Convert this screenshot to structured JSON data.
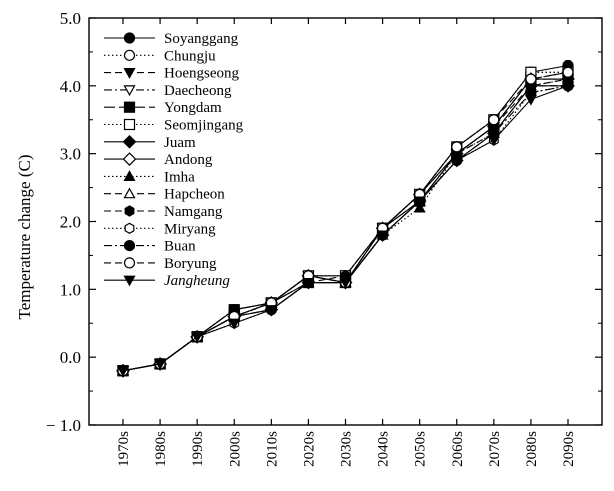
{
  "chart_data": {
    "type": "line",
    "title": "",
    "xlabel": "",
    "ylabel": "Temperature change (C)",
    "ylim": [
      -1.0,
      5.0
    ],
    "yticks": [
      "5.0",
      "4.0",
      "3.0",
      "2.0",
      "1.0",
      "0.0",
      "− 1.0"
    ],
    "ytick_values": [
      5,
      4,
      3,
      2,
      1,
      0,
      -1
    ],
    "categories": [
      "1970s",
      "1980s",
      "1990s",
      "2000s",
      "2010s",
      "2020s",
      "2030s",
      "2040s",
      "2050s",
      "2060s",
      "2070s",
      "2080s",
      "2090s"
    ],
    "grid": false,
    "legend_position": "top-left",
    "series": [
      {
        "name": "Soyanggang",
        "marker": "circle-filled",
        "dash": "solid",
        "values": [
          -0.2,
          -0.1,
          0.3,
          0.7,
          0.8,
          1.2,
          1.2,
          1.9,
          2.4,
          3.1,
          3.5,
          4.2,
          4.3
        ]
      },
      {
        "name": "Chungju",
        "marker": "circle-open",
        "dash": "dotted",
        "values": [
          -0.2,
          -0.1,
          0.3,
          0.7,
          0.8,
          1.2,
          1.1,
          1.9,
          2.4,
          3.1,
          3.5,
          4.2,
          4.2
        ]
      },
      {
        "name": "Hoengseong",
        "marker": "triangle-down-filled",
        "dash": "dashed",
        "values": [
          -0.2,
          -0.1,
          0.3,
          0.6,
          0.7,
          1.1,
          1.1,
          1.8,
          2.3,
          3.0,
          3.3,
          4.0,
          4.0
        ]
      },
      {
        "name": "Daecheong",
        "marker": "triangle-down-open",
        "dash": "dashdot",
        "values": [
          -0.2,
          -0.1,
          0.3,
          0.6,
          0.8,
          1.2,
          1.1,
          1.9,
          2.4,
          3.0,
          3.4,
          4.1,
          4.1
        ]
      },
      {
        "name": "Yongdam",
        "marker": "square-filled",
        "dash": "longdash",
        "values": [
          -0.2,
          -0.1,
          0.3,
          0.7,
          0.8,
          1.1,
          1.1,
          1.9,
          2.3,
          3.0,
          3.4,
          4.1,
          4.2
        ]
      },
      {
        "name": "Seomjingang",
        "marker": "square-open",
        "dash": "dotted",
        "values": [
          -0.2,
          -0.1,
          0.3,
          0.6,
          0.8,
          1.2,
          1.2,
          1.9,
          2.4,
          3.1,
          3.5,
          4.2,
          4.2
        ]
      },
      {
        "name": "Juam",
        "marker": "diamond-filled",
        "dash": "solid",
        "values": [
          -0.2,
          -0.1,
          0.3,
          0.6,
          0.7,
          1.1,
          1.1,
          1.8,
          2.3,
          2.9,
          3.3,
          4.0,
          4.0
        ]
      },
      {
        "name": "Andong",
        "marker": "diamond-open",
        "dash": "solid",
        "values": [
          -0.2,
          -0.1,
          0.3,
          0.6,
          0.8,
          1.2,
          1.1,
          1.9,
          2.4,
          3.0,
          3.4,
          4.1,
          4.1
        ]
      },
      {
        "name": "Imha",
        "marker": "triangle-up-filled",
        "dash": "dotted",
        "values": [
          -0.2,
          -0.1,
          0.3,
          0.6,
          0.8,
          1.1,
          1.1,
          1.8,
          2.2,
          3.0,
          3.3,
          4.0,
          4.1
        ]
      },
      {
        "name": "Hapcheon",
        "marker": "triangle-up-open",
        "dash": "dashed",
        "values": [
          -0.2,
          -0.1,
          0.3,
          0.6,
          0.8,
          1.2,
          1.1,
          1.9,
          2.3,
          3.0,
          3.4,
          4.1,
          4.1
        ]
      },
      {
        "name": "Namgang",
        "marker": "hexagon-filled",
        "dash": "dashed",
        "values": [
          -0.2,
          -0.1,
          0.3,
          0.7,
          0.8,
          1.1,
          1.2,
          1.9,
          2.3,
          3.0,
          3.4,
          4.0,
          4.1
        ]
      },
      {
        "name": "Miryang",
        "marker": "hexagon-open",
        "dash": "dotted",
        "values": [
          -0.2,
          -0.1,
          0.3,
          0.5,
          0.7,
          1.1,
          1.1,
          1.8,
          2.3,
          2.9,
          3.2,
          3.9,
          4.0
        ]
      },
      {
        "name": "Buan",
        "marker": "circle-filled",
        "dash": "dashdot",
        "values": [
          -0.2,
          -0.1,
          0.3,
          0.6,
          0.7,
          1.1,
          1.1,
          1.8,
          2.3,
          2.9,
          3.3,
          3.9,
          4.0
        ]
      },
      {
        "name": "Boryung",
        "marker": "circle-open",
        "dash": "dashed",
        "values": [
          -0.2,
          -0.1,
          0.3,
          0.6,
          0.8,
          1.2,
          1.1,
          1.9,
          2.4,
          3.1,
          3.5,
          4.1,
          4.2
        ]
      },
      {
        "name": "Jangheung",
        "marker": "triangle-down-filled",
        "dash": "solid",
        "values": [
          -0.2,
          -0.1,
          0.3,
          0.5,
          0.7,
          1.1,
          1.1,
          1.8,
          2.3,
          2.9,
          3.2,
          3.8,
          4.0
        ]
      }
    ]
  }
}
